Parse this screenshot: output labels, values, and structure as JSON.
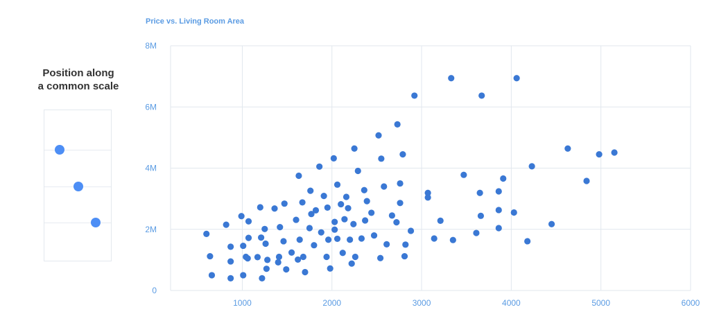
{
  "side": {
    "title_line1": "Position along",
    "title_line2": "a common scale",
    "dot_color": "#4d8ef5",
    "values": [
      0.62,
      0.35,
      0.18
    ]
  },
  "chart_data": {
    "type": "scatter",
    "title": "Price vs. Living Room Area",
    "xlabel": "",
    "ylabel": "",
    "xlim": [
      200,
      6000
    ],
    "ylim": [
      0,
      8000000
    ],
    "x_ticks": [
      1000,
      2000,
      3000,
      4000,
      5000,
      6000
    ],
    "x_tick_labels": [
      "1000",
      "2000",
      "3000",
      "4000",
      "5000",
      "6000"
    ],
    "y_ticks": [
      0,
      2000000,
      4000000,
      6000000,
      8000000
    ],
    "y_tick_labels": [
      "0",
      "2M",
      "4M",
      "6M",
      "8M"
    ],
    "grid": true,
    "color": "#3a78d4",
    "series": [
      {
        "points": [
          [
            600,
            1850000
          ],
          [
            640,
            1120000
          ],
          [
            660,
            500000
          ],
          [
            820,
            2150000
          ],
          [
            870,
            1430000
          ],
          [
            870,
            950000
          ],
          [
            870,
            400000
          ],
          [
            990,
            2430000
          ],
          [
            1010,
            1460000
          ],
          [
            1010,
            500000
          ],
          [
            1040,
            1100000
          ],
          [
            1060,
            1050000
          ],
          [
            1070,
            1720000
          ],
          [
            1070,
            2260000
          ],
          [
            1170,
            1090000
          ],
          [
            1200,
            2720000
          ],
          [
            1210,
            1730000
          ],
          [
            1220,
            400000
          ],
          [
            1250,
            2010000
          ],
          [
            1260,
            1530000
          ],
          [
            1270,
            710000
          ],
          [
            1280,
            1000000
          ],
          [
            1360,
            2680000
          ],
          [
            1400,
            920000
          ],
          [
            1410,
            1100000
          ],
          [
            1420,
            2070000
          ],
          [
            1460,
            1610000
          ],
          [
            1470,
            2840000
          ],
          [
            1490,
            690000
          ],
          [
            1550,
            1240000
          ],
          [
            1600,
            2310000
          ],
          [
            1620,
            1010000
          ],
          [
            1630,
            3750000
          ],
          [
            1640,
            1660000
          ],
          [
            1670,
            2880000
          ],
          [
            1680,
            1100000
          ],
          [
            1700,
            600000
          ],
          [
            1750,
            2040000
          ],
          [
            1760,
            3260000
          ],
          [
            1770,
            2500000
          ],
          [
            1800,
            1480000
          ],
          [
            1820,
            2620000
          ],
          [
            1860,
            4050000
          ],
          [
            1880,
            1900000
          ],
          [
            1910,
            3090000
          ],
          [
            1940,
            1100000
          ],
          [
            1950,
            2710000
          ],
          [
            1960,
            1660000
          ],
          [
            1980,
            720000
          ],
          [
            2030,
            2240000
          ],
          [
            2020,
            4320000
          ],
          [
            2030,
            1990000
          ],
          [
            2060,
            3460000
          ],
          [
            2060,
            1690000
          ],
          [
            2100,
            2820000
          ],
          [
            2120,
            1230000
          ],
          [
            2140,
            2330000
          ],
          [
            2160,
            3060000
          ],
          [
            2180,
            2690000
          ],
          [
            2200,
            1660000
          ],
          [
            2220,
            880000
          ],
          [
            2240,
            2170000
          ],
          [
            2250,
            4640000
          ],
          [
            2260,
            1100000
          ],
          [
            2290,
            3910000
          ],
          [
            2330,
            1700000
          ],
          [
            2360,
            3280000
          ],
          [
            2370,
            2290000
          ],
          [
            2390,
            2920000
          ],
          [
            2440,
            2540000
          ],
          [
            2470,
            1800000
          ],
          [
            2520,
            5070000
          ],
          [
            2540,
            1060000
          ],
          [
            2550,
            4310000
          ],
          [
            2580,
            3400000
          ],
          [
            2610,
            1510000
          ],
          [
            2670,
            2450000
          ],
          [
            2720,
            2230000
          ],
          [
            2730,
            5430000
          ],
          [
            2760,
            3500000
          ],
          [
            2760,
            2860000
          ],
          [
            2790,
            4450000
          ],
          [
            2810,
            1120000
          ],
          [
            2820,
            1500000
          ],
          [
            2880,
            1950000
          ],
          [
            2920,
            6370000
          ],
          [
            3070,
            3190000
          ],
          [
            3070,
            3040000
          ],
          [
            3140,
            1700000
          ],
          [
            3210,
            2280000
          ],
          [
            3330,
            6940000
          ],
          [
            3350,
            1650000
          ],
          [
            3470,
            3780000
          ],
          [
            3610,
            1880000
          ],
          [
            3650,
            3190000
          ],
          [
            3660,
            2440000
          ],
          [
            3670,
            6370000
          ],
          [
            3860,
            3240000
          ],
          [
            3860,
            2630000
          ],
          [
            3860,
            2040000
          ],
          [
            3910,
            3660000
          ],
          [
            4030,
            2550000
          ],
          [
            4060,
            6940000
          ],
          [
            4180,
            1610000
          ],
          [
            4230,
            4060000
          ],
          [
            4450,
            2170000
          ],
          [
            4630,
            4640000
          ],
          [
            4840,
            3580000
          ],
          [
            4980,
            4450000
          ],
          [
            5150,
            4510000
          ]
        ]
      }
    ]
  }
}
